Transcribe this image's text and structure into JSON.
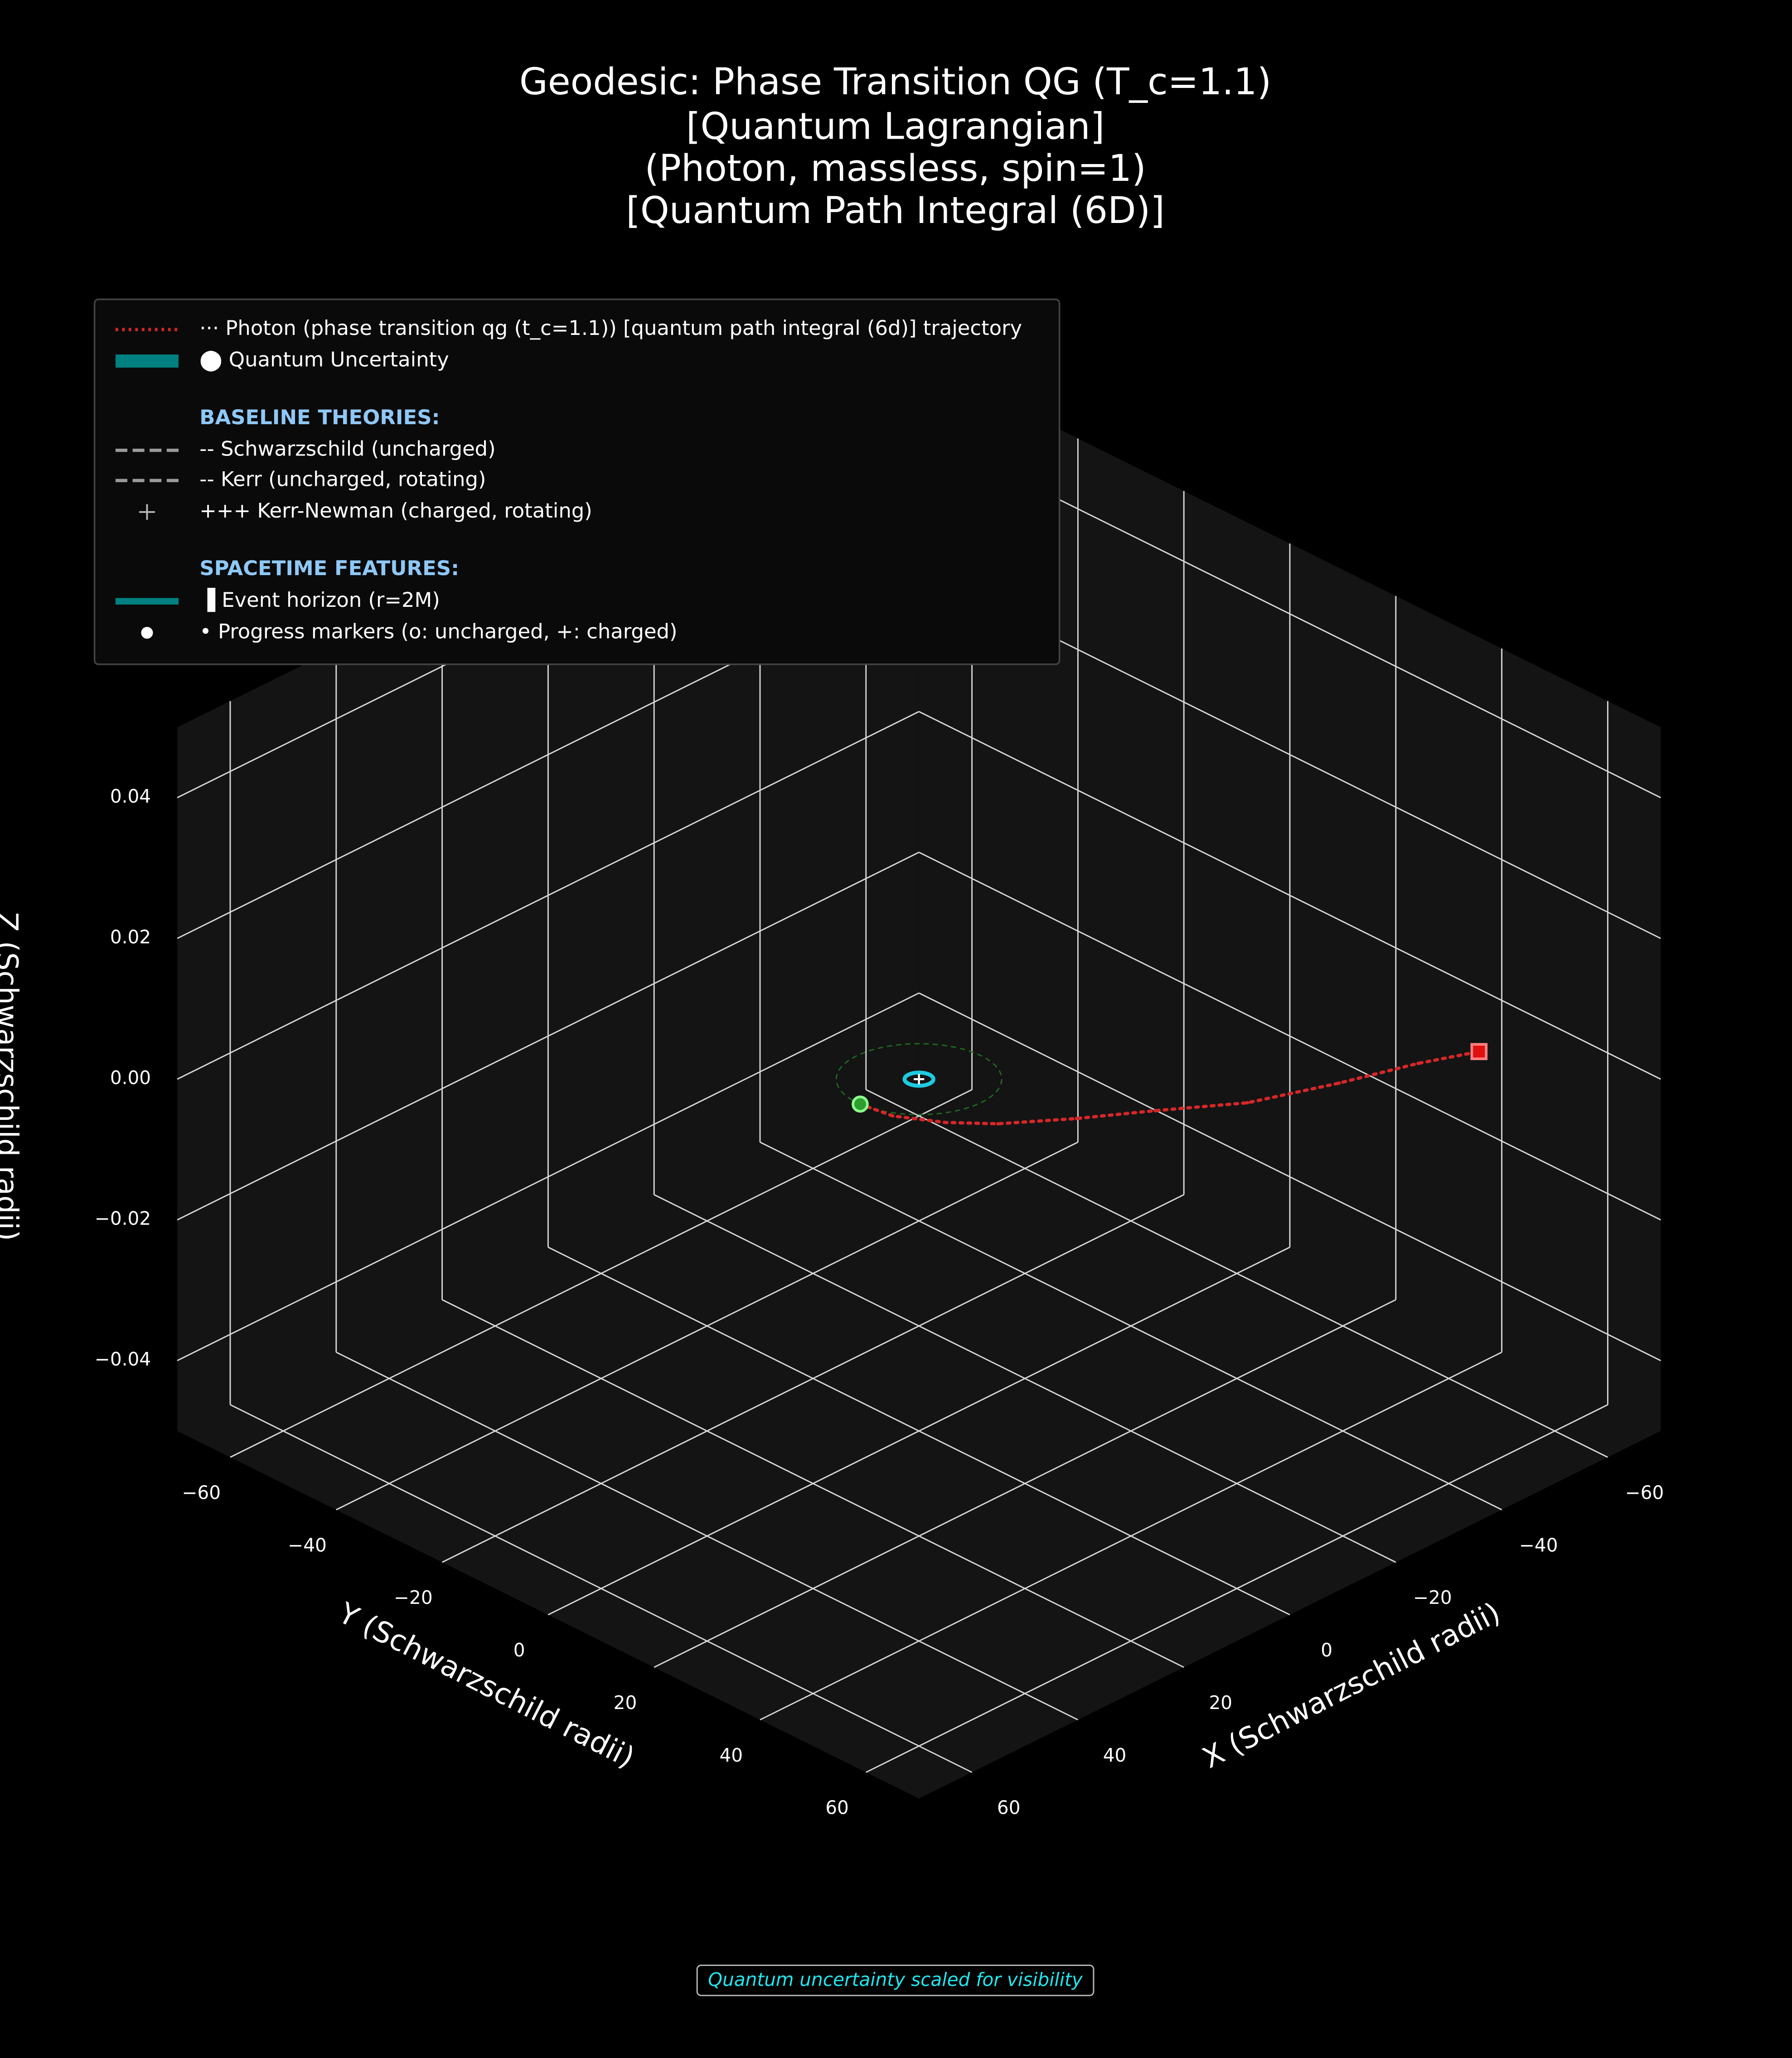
{
  "chart_data": {
    "type": "line3d",
    "title_lines": [
      "Geodesic: Phase Transition QG (T_c=1.1)",
      "[Quantum Lagrangian]",
      "(Photon, massless, spin=1)",
      "[Quantum Path Integral (6D)]"
    ],
    "xlabel": "X (Schwarzschild radii)",
    "ylabel": "Y (Schwarzschild radii)",
    "zlabel": "Z (Schwarzschild radii)",
    "xlim": [
      -70,
      70
    ],
    "ylim": [
      -70,
      70
    ],
    "zlim": [
      -0.05,
      0.05
    ],
    "xticks": [
      {
        "value": -60,
        "label": "−60"
      },
      {
        "value": -40,
        "label": "−40"
      },
      {
        "value": -20,
        "label": "−20"
      },
      0,
      20,
      40,
      60
    ],
    "yticks": [
      {
        "value": -60,
        "label": "−60"
      },
      {
        "value": -40,
        "label": "−40"
      },
      {
        "value": -20,
        "label": "−20"
      },
      0,
      20,
      40,
      60
    ],
    "zticks": [
      {
        "value": -0.04,
        "label": "−0.04"
      },
      {
        "value": -0.02,
        "label": "−0.02"
      },
      {
        "value": 0,
        "label": "0.00"
      },
      0.02,
      0.04
    ],
    "grid": true,
    "series": [
      {
        "name": "··· Photon (phase transition qg (t_c=1.1)) [quantum path integral (6d)] trajectory",
        "color": "#d62728",
        "x": [
          10.3,
          9.48,
          5.77,
          1.05,
          -7.37,
          -16.3,
          -26.5,
          -38.9,
          -50.1,
          -58.1
        ],
        "y": [
          -0.8,
          4.52,
          10.73,
          15.95,
          22.37,
          28.3,
          35.5,
          40.4,
          44.1,
          47.6
        ],
        "z": [
          0,
          0,
          0,
          0,
          0,
          0,
          0,
          0,
          0,
          0
        ]
      }
    ],
    "legend_items": [
      {
        "label": "⬤ Quantum Uncertainty",
        "handle": "patch",
        "color": "#008080"
      },
      {
        "label": "BASELINE THEORIES:",
        "handle": "header",
        "color": "#8ec8f8"
      },
      {
        "label": "-- Schwarzschild (uncharged)",
        "handle": "dashed",
        "color": "#9a9a9a"
      },
      {
        "label": "-- Kerr (uncharged, rotating)",
        "handle": "dashed",
        "color": "#9a9a9a"
      },
      {
        "label": "+++ Kerr-Newman (charged, rotating)",
        "handle": "plus",
        "color": "#bbbbbb"
      },
      {
        "label": "SPACETIME FEATURES:",
        "handle": "header",
        "color": "#8ec8f8"
      },
      {
        "label": "▐ Event horizon (r=2M)",
        "handle": "thick",
        "color": "#008080"
      },
      {
        "label": "• Progress markers (o: uncharged, +: charged)",
        "handle": "dot",
        "color": "#ffffff"
      }
    ],
    "footnote": "Quantum uncertainty scaled for visibility"
  }
}
